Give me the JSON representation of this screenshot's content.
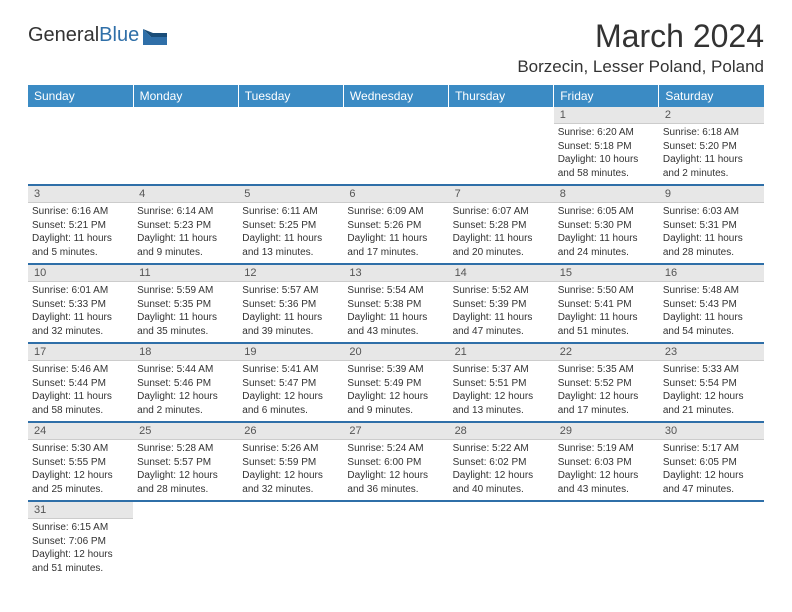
{
  "logo": {
    "general": "General",
    "blue": "Blue"
  },
  "title": "March 2024",
  "location": "Borzecin, Lesser Poland, Poland",
  "colors": {
    "header_bg": "#3b8bc4",
    "header_text": "#ffffff",
    "daynum_bg": "#e7e7e7",
    "rule": "#2f6fa8",
    "text": "#333333"
  },
  "weekdays": [
    "Sunday",
    "Monday",
    "Tuesday",
    "Wednesday",
    "Thursday",
    "Friday",
    "Saturday"
  ],
  "weeks": [
    [
      null,
      null,
      null,
      null,
      null,
      {
        "n": "1",
        "sr": "Sunrise: 6:20 AM",
        "ss": "Sunset: 5:18 PM",
        "d1": "Daylight: 10 hours",
        "d2": "and 58 minutes."
      },
      {
        "n": "2",
        "sr": "Sunrise: 6:18 AM",
        "ss": "Sunset: 5:20 PM",
        "d1": "Daylight: 11 hours",
        "d2": "and 2 minutes."
      }
    ],
    [
      {
        "n": "3",
        "sr": "Sunrise: 6:16 AM",
        "ss": "Sunset: 5:21 PM",
        "d1": "Daylight: 11 hours",
        "d2": "and 5 minutes."
      },
      {
        "n": "4",
        "sr": "Sunrise: 6:14 AM",
        "ss": "Sunset: 5:23 PM",
        "d1": "Daylight: 11 hours",
        "d2": "and 9 minutes."
      },
      {
        "n": "5",
        "sr": "Sunrise: 6:11 AM",
        "ss": "Sunset: 5:25 PM",
        "d1": "Daylight: 11 hours",
        "d2": "and 13 minutes."
      },
      {
        "n": "6",
        "sr": "Sunrise: 6:09 AM",
        "ss": "Sunset: 5:26 PM",
        "d1": "Daylight: 11 hours",
        "d2": "and 17 minutes."
      },
      {
        "n": "7",
        "sr": "Sunrise: 6:07 AM",
        "ss": "Sunset: 5:28 PM",
        "d1": "Daylight: 11 hours",
        "d2": "and 20 minutes."
      },
      {
        "n": "8",
        "sr": "Sunrise: 6:05 AM",
        "ss": "Sunset: 5:30 PM",
        "d1": "Daylight: 11 hours",
        "d2": "and 24 minutes."
      },
      {
        "n": "9",
        "sr": "Sunrise: 6:03 AM",
        "ss": "Sunset: 5:31 PM",
        "d1": "Daylight: 11 hours",
        "d2": "and 28 minutes."
      }
    ],
    [
      {
        "n": "10",
        "sr": "Sunrise: 6:01 AM",
        "ss": "Sunset: 5:33 PM",
        "d1": "Daylight: 11 hours",
        "d2": "and 32 minutes."
      },
      {
        "n": "11",
        "sr": "Sunrise: 5:59 AM",
        "ss": "Sunset: 5:35 PM",
        "d1": "Daylight: 11 hours",
        "d2": "and 35 minutes."
      },
      {
        "n": "12",
        "sr": "Sunrise: 5:57 AM",
        "ss": "Sunset: 5:36 PM",
        "d1": "Daylight: 11 hours",
        "d2": "and 39 minutes."
      },
      {
        "n": "13",
        "sr": "Sunrise: 5:54 AM",
        "ss": "Sunset: 5:38 PM",
        "d1": "Daylight: 11 hours",
        "d2": "and 43 minutes."
      },
      {
        "n": "14",
        "sr": "Sunrise: 5:52 AM",
        "ss": "Sunset: 5:39 PM",
        "d1": "Daylight: 11 hours",
        "d2": "and 47 minutes."
      },
      {
        "n": "15",
        "sr": "Sunrise: 5:50 AM",
        "ss": "Sunset: 5:41 PM",
        "d1": "Daylight: 11 hours",
        "d2": "and 51 minutes."
      },
      {
        "n": "16",
        "sr": "Sunrise: 5:48 AM",
        "ss": "Sunset: 5:43 PM",
        "d1": "Daylight: 11 hours",
        "d2": "and 54 minutes."
      }
    ],
    [
      {
        "n": "17",
        "sr": "Sunrise: 5:46 AM",
        "ss": "Sunset: 5:44 PM",
        "d1": "Daylight: 11 hours",
        "d2": "and 58 minutes."
      },
      {
        "n": "18",
        "sr": "Sunrise: 5:44 AM",
        "ss": "Sunset: 5:46 PM",
        "d1": "Daylight: 12 hours",
        "d2": "and 2 minutes."
      },
      {
        "n": "19",
        "sr": "Sunrise: 5:41 AM",
        "ss": "Sunset: 5:47 PM",
        "d1": "Daylight: 12 hours",
        "d2": "and 6 minutes."
      },
      {
        "n": "20",
        "sr": "Sunrise: 5:39 AM",
        "ss": "Sunset: 5:49 PM",
        "d1": "Daylight: 12 hours",
        "d2": "and 9 minutes."
      },
      {
        "n": "21",
        "sr": "Sunrise: 5:37 AM",
        "ss": "Sunset: 5:51 PM",
        "d1": "Daylight: 12 hours",
        "d2": "and 13 minutes."
      },
      {
        "n": "22",
        "sr": "Sunrise: 5:35 AM",
        "ss": "Sunset: 5:52 PM",
        "d1": "Daylight: 12 hours",
        "d2": "and 17 minutes."
      },
      {
        "n": "23",
        "sr": "Sunrise: 5:33 AM",
        "ss": "Sunset: 5:54 PM",
        "d1": "Daylight: 12 hours",
        "d2": "and 21 minutes."
      }
    ],
    [
      {
        "n": "24",
        "sr": "Sunrise: 5:30 AM",
        "ss": "Sunset: 5:55 PM",
        "d1": "Daylight: 12 hours",
        "d2": "and 25 minutes."
      },
      {
        "n": "25",
        "sr": "Sunrise: 5:28 AM",
        "ss": "Sunset: 5:57 PM",
        "d1": "Daylight: 12 hours",
        "d2": "and 28 minutes."
      },
      {
        "n": "26",
        "sr": "Sunrise: 5:26 AM",
        "ss": "Sunset: 5:59 PM",
        "d1": "Daylight: 12 hours",
        "d2": "and 32 minutes."
      },
      {
        "n": "27",
        "sr": "Sunrise: 5:24 AM",
        "ss": "Sunset: 6:00 PM",
        "d1": "Daylight: 12 hours",
        "d2": "and 36 minutes."
      },
      {
        "n": "28",
        "sr": "Sunrise: 5:22 AM",
        "ss": "Sunset: 6:02 PM",
        "d1": "Daylight: 12 hours",
        "d2": "and 40 minutes."
      },
      {
        "n": "29",
        "sr": "Sunrise: 5:19 AM",
        "ss": "Sunset: 6:03 PM",
        "d1": "Daylight: 12 hours",
        "d2": "and 43 minutes."
      },
      {
        "n": "30",
        "sr": "Sunrise: 5:17 AM",
        "ss": "Sunset: 6:05 PM",
        "d1": "Daylight: 12 hours",
        "d2": "and 47 minutes."
      }
    ],
    [
      {
        "n": "31",
        "sr": "Sunrise: 6:15 AM",
        "ss": "Sunset: 7:06 PM",
        "d1": "Daylight: 12 hours",
        "d2": "and 51 minutes."
      },
      null,
      null,
      null,
      null,
      null,
      null
    ]
  ]
}
